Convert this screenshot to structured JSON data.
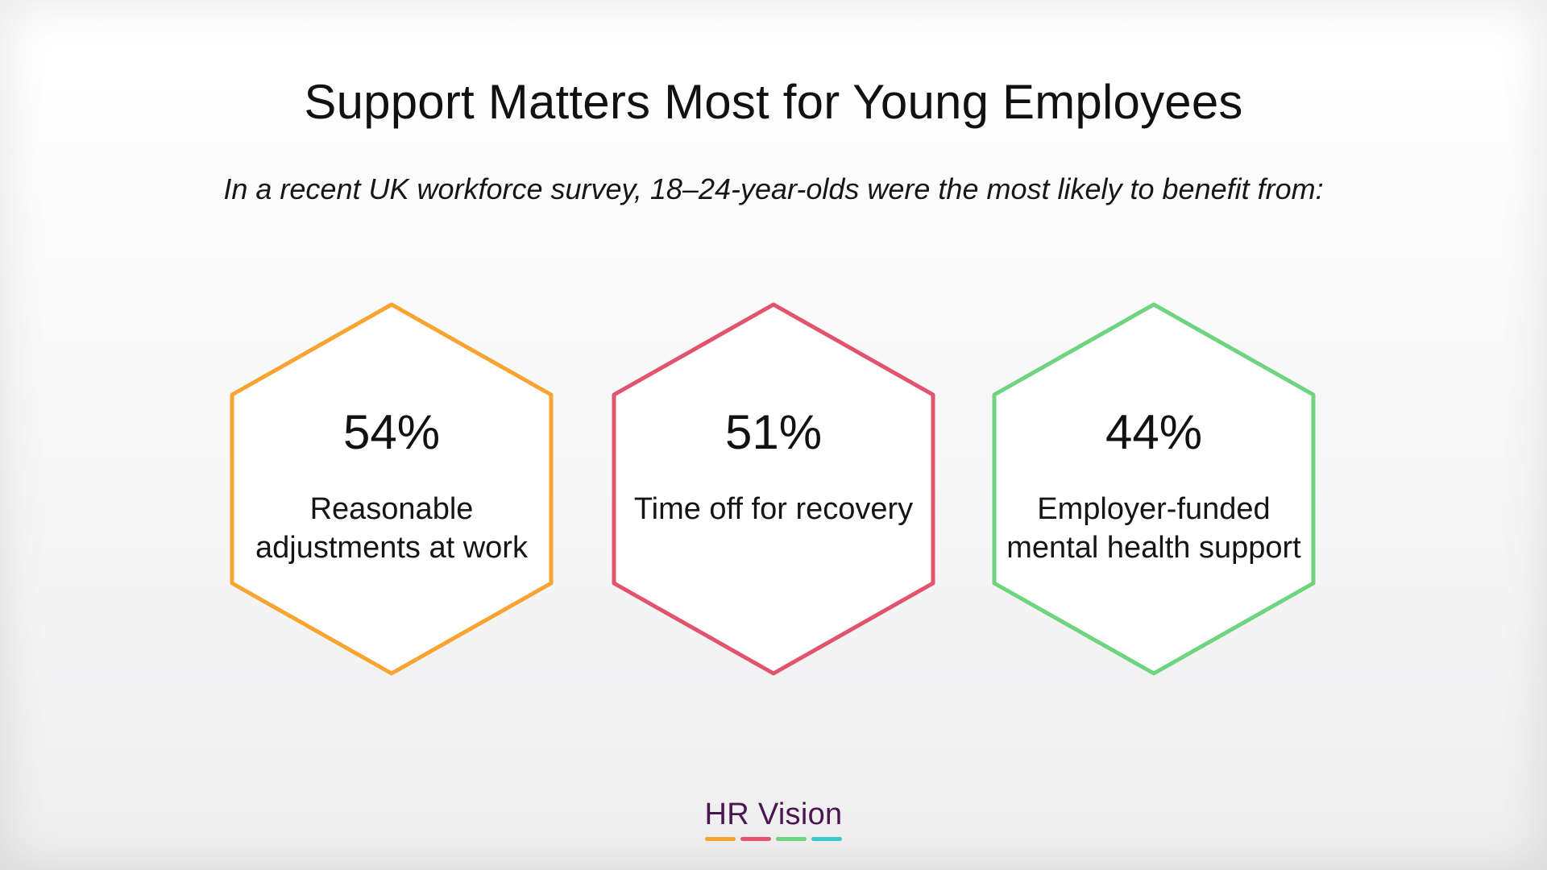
{
  "title": "Support Matters Most for Young Employees",
  "subtitle": "In a recent UK workforce survey, 18–24-year-olds were the most likely to benefit from:",
  "stats": [
    {
      "value": "54%",
      "label_line1": "Reasonable",
      "label_line2": "adjustments at work",
      "color": "#f7a431"
    },
    {
      "value": "51%",
      "label_line1": "Time off for recovery",
      "label_line2": "",
      "color": "#e2536d"
    },
    {
      "value": "44%",
      "label_line1": "Employer-funded",
      "label_line2": "mental health support",
      "color": "#6ed47f"
    }
  ],
  "logo": {
    "text": "HR Vision",
    "bar_colors": [
      "#f7a431",
      "#e2536d",
      "#6ed47f",
      "#3ec9c9"
    ]
  }
}
